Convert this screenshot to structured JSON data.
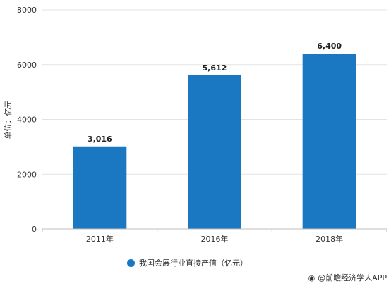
{
  "chart_data": {
    "type": "bar",
    "categories": [
      "2011年",
      "2016年",
      "2018年"
    ],
    "series": [
      {
        "name": "我国会展行业直接产值（亿元）",
        "values": [
          3016,
          5612,
          6400
        ],
        "color": "#1a78c2"
      }
    ],
    "data_labels": [
      "3,016",
      "5,612",
      "6,400"
    ],
    "ylabel": "单位：亿元",
    "xlabel": "",
    "ylim": [
      0,
      8000
    ],
    "yticks": [
      "0",
      "2000",
      "4000",
      "6000",
      "8000"
    ],
    "ytick_values": [
      0,
      2000,
      4000,
      6000,
      8000
    ],
    "grid": true,
    "legend_position": "bottom"
  },
  "legend": {
    "label": "我国会展行业直接产值（亿元）",
    "color": "#1a78c2"
  },
  "footer": {
    "text": "@前瞻经济学人APP",
    "icon": "logo-icon"
  }
}
